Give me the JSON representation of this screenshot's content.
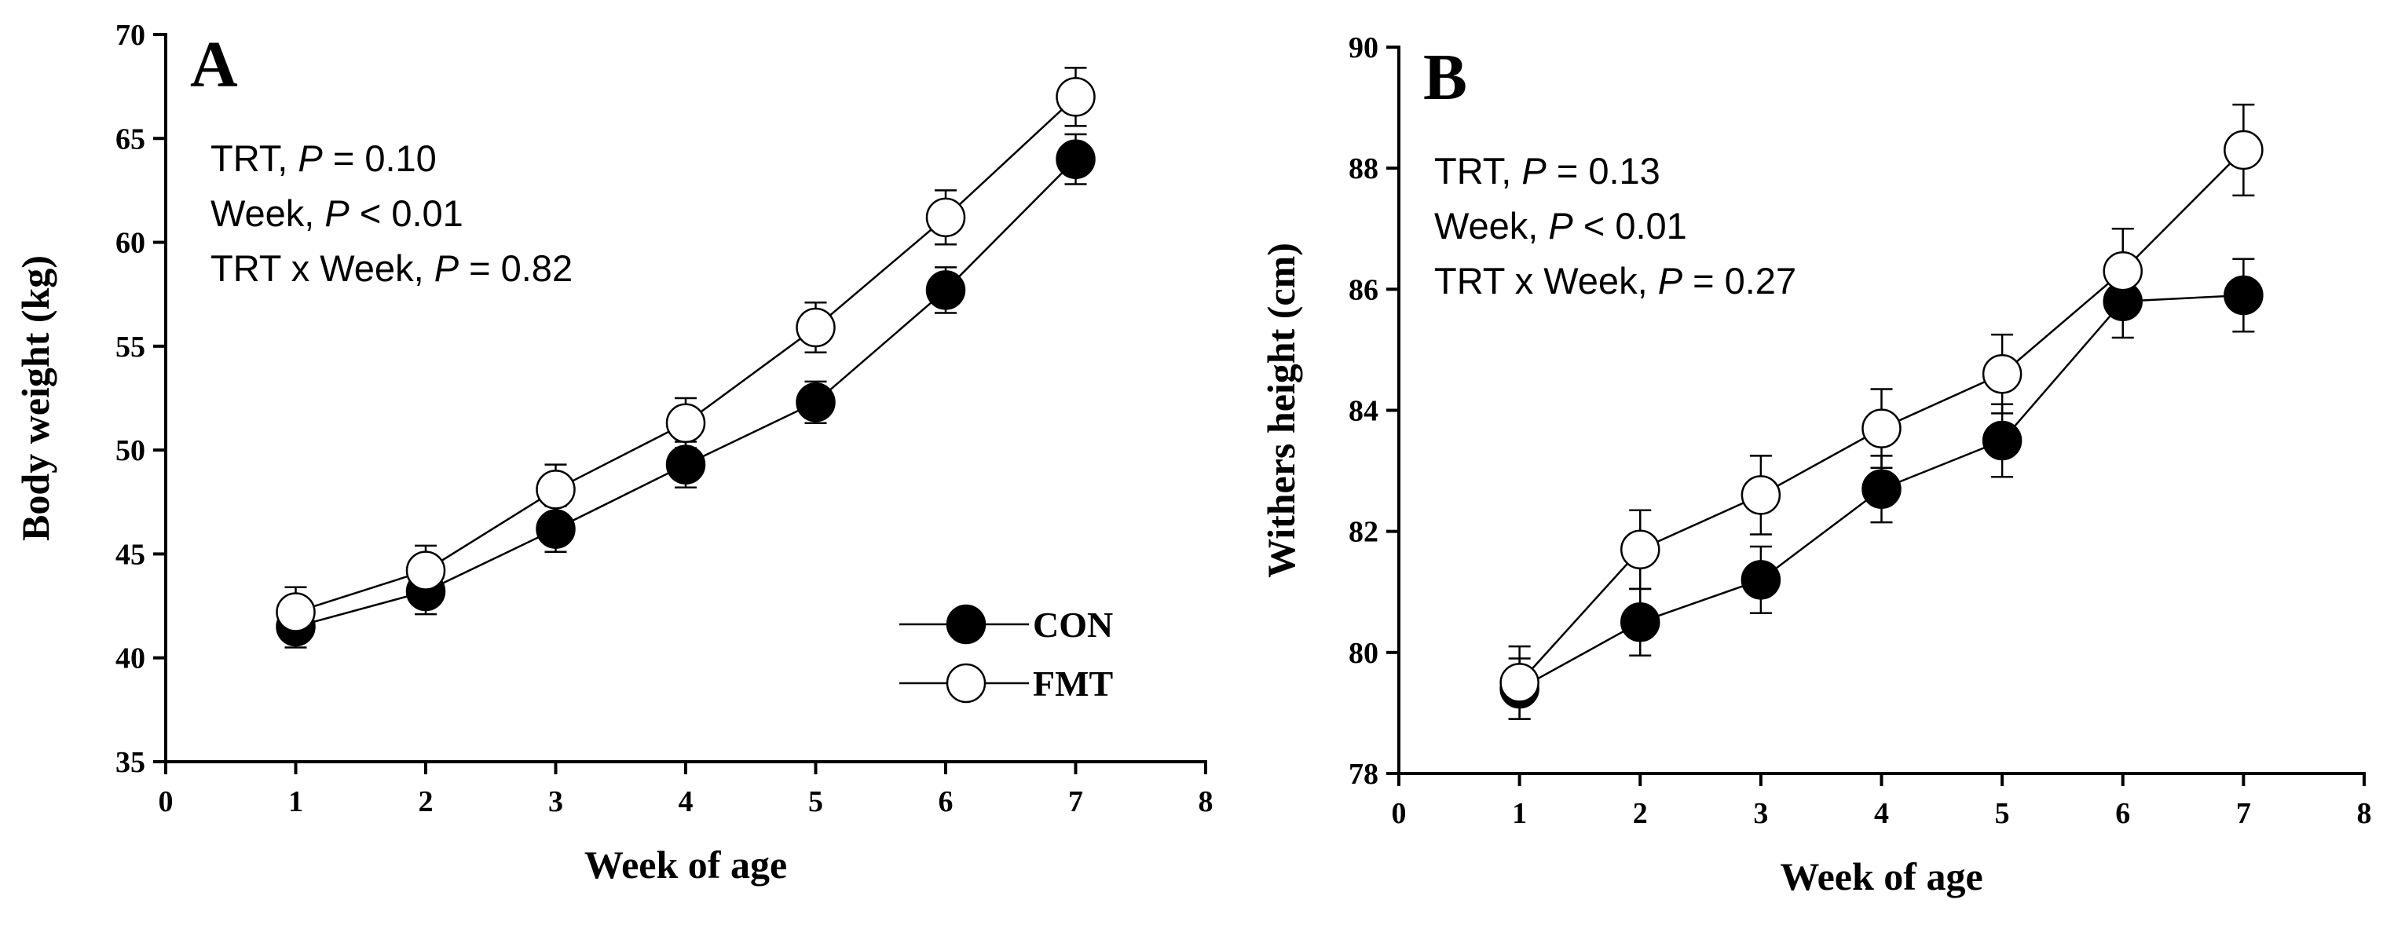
{
  "chart_data": [
    {
      "id": "A",
      "type": "line",
      "panel_label": "A",
      "xlabel": "Week of age",
      "ylabel": "Body weight (kg)",
      "xlim": [
        0,
        8
      ],
      "ylim": [
        35,
        70
      ],
      "xticks": [
        0,
        1,
        2,
        3,
        4,
        5,
        6,
        7,
        8
      ],
      "yticks": [
        35,
        40,
        45,
        50,
        55,
        60,
        65,
        70
      ],
      "x": [
        1,
        2,
        3,
        4,
        5,
        6,
        7
      ],
      "stats": [
        {
          "prefix": "TRT, ",
          "p": "P",
          "suffix": " = 0.10"
        },
        {
          "prefix": "Week, ",
          "p": "P",
          "suffix": " < 0.01"
        },
        {
          "prefix": "TRT x Week, ",
          "p": "P",
          "suffix": " = 0.82"
        }
      ],
      "legend": true,
      "series": [
        {
          "name": "CON",
          "marker": "filled",
          "values": [
            41.5,
            43.2,
            46.2,
            49.3,
            52.3,
            57.7,
            64.0
          ],
          "err": [
            1.0,
            1.1,
            1.1,
            1.1,
            1.0,
            1.1,
            1.2
          ]
        },
        {
          "name": "FMT",
          "marker": "open",
          "values": [
            42.2,
            44.2,
            48.1,
            51.3,
            55.9,
            61.2,
            67.0
          ],
          "err": [
            1.2,
            1.2,
            1.2,
            1.2,
            1.2,
            1.3,
            1.4
          ]
        }
      ]
    },
    {
      "id": "B",
      "type": "line",
      "panel_label": "B",
      "xlabel": "Week of age",
      "ylabel": "Withers height (cm)",
      "xlim": [
        0,
        8
      ],
      "ylim": [
        78,
        90
      ],
      "xticks": [
        0,
        1,
        2,
        3,
        4,
        5,
        6,
        7,
        8
      ],
      "yticks": [
        78,
        80,
        82,
        84,
        86,
        88,
        90
      ],
      "x": [
        1,
        2,
        3,
        4,
        5,
        6,
        7
      ],
      "stats": [
        {
          "prefix": "TRT, ",
          "p": "P",
          "suffix": " = 0.13"
        },
        {
          "prefix": "Week, ",
          "p": "P",
          "suffix": " < 0.01"
        },
        {
          "prefix": "TRT x Week, ",
          "p": "P",
          "suffix": " = 0.27"
        }
      ],
      "legend": false,
      "series": [
        {
          "name": "CON",
          "marker": "filled",
          "values": [
            79.4,
            80.5,
            81.2,
            82.7,
            83.5,
            85.8,
            85.9
          ],
          "err": [
            0.5,
            0.55,
            0.55,
            0.55,
            0.6,
            0.6,
            0.6
          ]
        },
        {
          "name": "FMT",
          "marker": "open",
          "values": [
            79.5,
            81.7,
            82.6,
            83.7,
            84.6,
            86.3,
            88.3
          ],
          "err": [
            0.6,
            0.65,
            0.65,
            0.65,
            0.65,
            0.7,
            0.75
          ]
        }
      ]
    }
  ]
}
